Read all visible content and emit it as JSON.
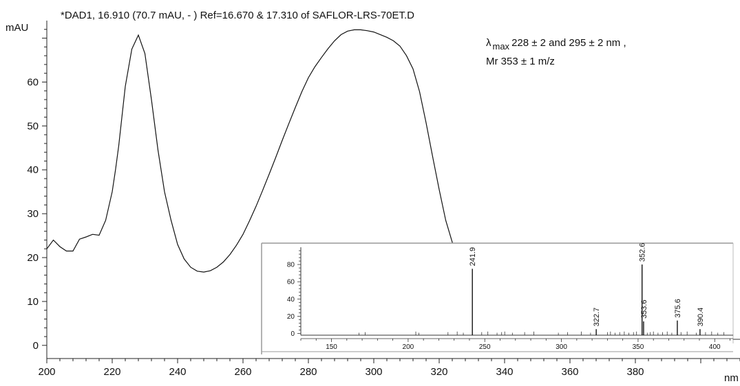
{
  "chart_data": [
    {
      "type": "line",
      "title": "*DAD1, 16.910 (70.7 mAU, - ) Ref=16.670 & 17.310 of SAFLOR-LRS-70ET.D",
      "ylabel": "mAU",
      "xlabel": "nm",
      "xlim": [
        200,
        412
      ],
      "ylim": [
        -3,
        74
      ],
      "x_ticks": [
        "200",
        "220",
        "240",
        "260",
        "280",
        "300",
        "320",
        "340",
        "360",
        "380"
      ],
      "y_ticks": [
        "0",
        "10",
        "20",
        "30",
        "40",
        "50",
        "60"
      ],
      "annotation_line1_prefix": "λ",
      "annotation_line1_sub": "max",
      "annotation_line1_rest": "228 ± 2 and 295 ± 2 nm ,",
      "annotation_line2": "Mr 353 ± 1 m/z",
      "series": [
        {
          "x": [
            200,
            202,
            204,
            206,
            208,
            210,
            212,
            214,
            216,
            218,
            220,
            221,
            222,
            224,
            226,
            228,
            230,
            232,
            234,
            236,
            238,
            240,
            242,
            244,
            246,
            248,
            250,
            252,
            254,
            256,
            258,
            260,
            262,
            264,
            266,
            268,
            270,
            272,
            274,
            276,
            278,
            280,
            282,
            284,
            286,
            288,
            290,
            292,
            294,
            296,
            298,
            300,
            302,
            304,
            306,
            308,
            310,
            312,
            314,
            316,
            318,
            320,
            322,
            324,
            326,
            328,
            330
          ],
          "y": [
            22.0,
            24.0,
            22.5,
            21.5,
            21.5,
            24.2,
            24.7,
            25.3,
            25.1,
            28.5,
            35.0,
            40.0,
            45.5,
            59.0,
            67.5,
            70.7,
            66.5,
            56.0,
            44.5,
            35.0,
            28.5,
            23.0,
            19.7,
            17.8,
            16.9,
            16.7,
            17.0,
            17.8,
            19.0,
            20.7,
            22.8,
            25.3,
            28.4,
            31.7,
            35.3,
            39.0,
            42.8,
            46.7,
            50.5,
            54.2,
            57.8,
            61.0,
            63.5,
            65.6,
            67.6,
            69.4,
            70.8,
            71.6,
            71.9,
            71.9,
            71.7,
            71.4,
            70.8,
            70.2,
            69.4,
            68.2,
            66.0,
            63.0,
            57.8,
            50.7,
            43.0,
            35.5,
            28.5,
            23.5,
            19.5,
            16.0,
            13.0
          ]
        }
      ]
    },
    {
      "type": "bar",
      "xlim": [
        130,
        412
      ],
      "ylim": [
        -2,
        100
      ],
      "x_ticks": [
        "150",
        "200",
        "250",
        "300",
        "350",
        "400"
      ],
      "y_ticks": [
        "0",
        "20",
        "40",
        "60",
        "80"
      ],
      "peaks": [
        {
          "x": 241.9,
          "y": 75,
          "label": "241.9"
        },
        {
          "x": 322.7,
          "y": 5,
          "label": "322.7"
        },
        {
          "x": 352.6,
          "y": 80,
          "label": "352.6"
        },
        {
          "x": 353.6,
          "y": 14,
          "label": "353.6"
        },
        {
          "x": 375.6,
          "y": 15,
          "label": "375.6"
        },
        {
          "x": 390.4,
          "y": 5,
          "label": "390.4"
        }
      ]
    }
  ]
}
